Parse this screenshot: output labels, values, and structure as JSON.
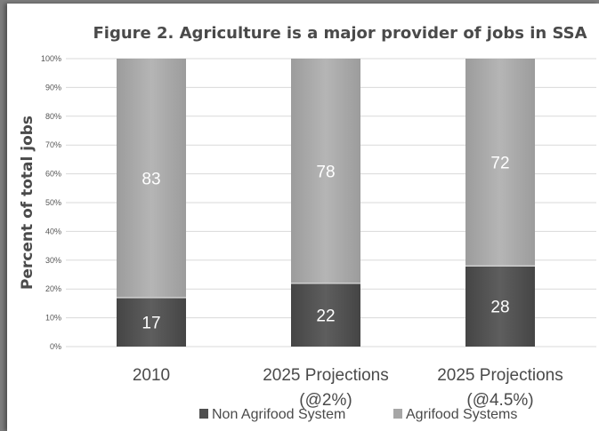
{
  "chart_data": {
    "type": "bar",
    "stacked": true,
    "title": "Figure 2. Agriculture is a major provider of jobs in SSA",
    "ylabel": "Percent of total jobs",
    "xlabel": "",
    "ylim": [
      0,
      100
    ],
    "yticks": [
      "0%",
      "10%",
      "20%",
      "30%",
      "40%",
      "50%",
      "60%",
      "70%",
      "80%",
      "90%",
      "100%"
    ],
    "categories": [
      [
        "2010"
      ],
      [
        "2025 Projections",
        "(@2%)"
      ],
      [
        "2025 Projections",
        "(@4.5%)"
      ]
    ],
    "series": [
      {
        "name": "Non Agrifood System",
        "color": "#4f4f4f",
        "values": [
          17,
          22,
          28
        ]
      },
      {
        "name": "Agrifood Systems",
        "color": "#a6a6a6",
        "values": [
          83,
          78,
          72
        ]
      }
    ],
    "grid": true,
    "legend": "bottom"
  }
}
